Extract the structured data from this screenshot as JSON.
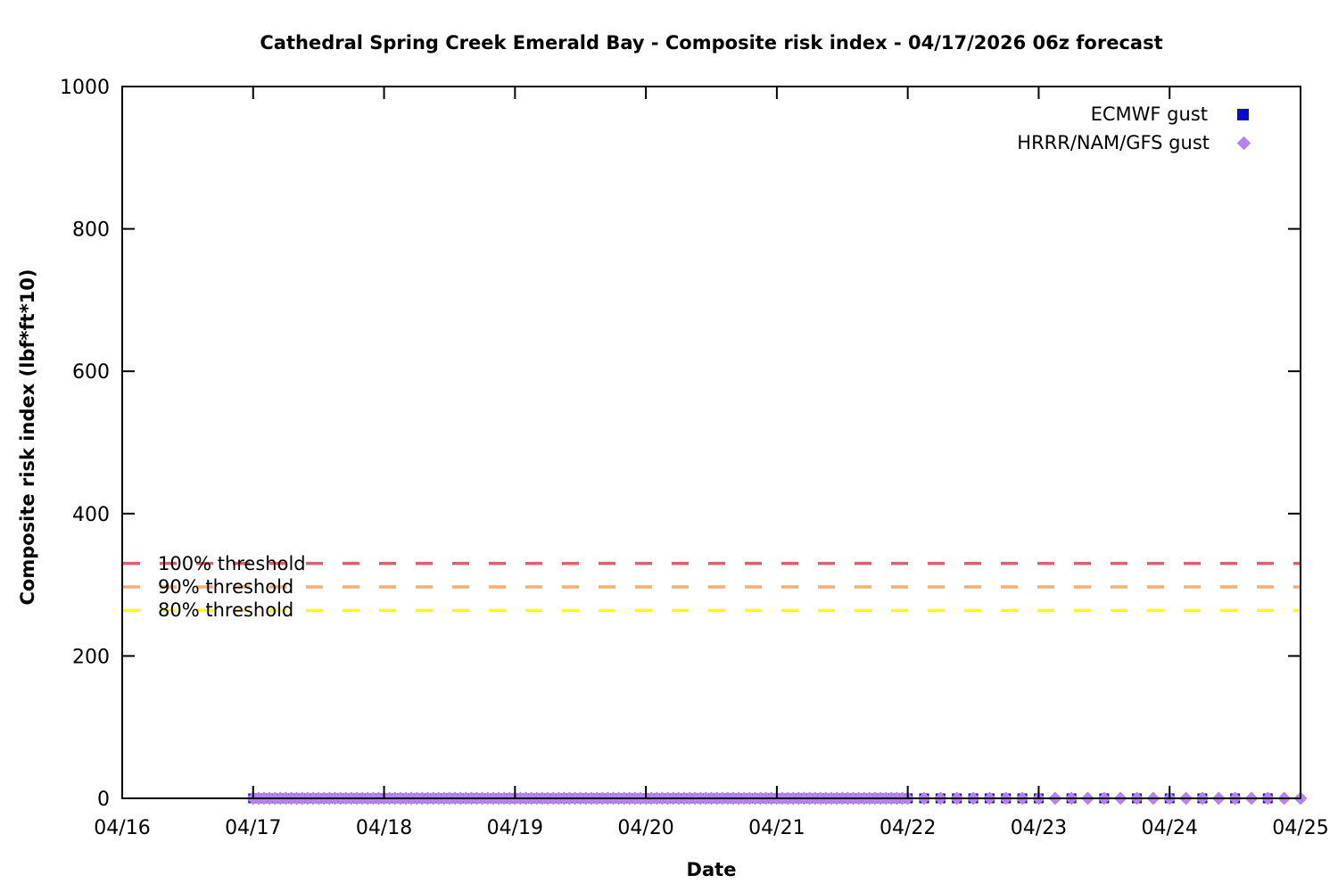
{
  "chart_data": {
    "type": "scatter",
    "title": "Cathedral Spring Creek Emerald Bay - Composite risk index - 04/17/2026 06z forecast",
    "xlabel": "Date",
    "ylabel": "Composite risk index (lbf*ft*10)",
    "x_tick_labels": [
      "04/16",
      "04/17",
      "04/18",
      "04/19",
      "04/20",
      "04/21",
      "04/22",
      "04/23",
      "04/24",
      "04/25"
    ],
    "x_range_hours": [
      0,
      216
    ],
    "ylim": [
      0,
      1000
    ],
    "y_ticks": [
      0,
      200,
      400,
      600,
      800,
      1000
    ],
    "grid": false,
    "legend_position": "top-right-inside",
    "series": [
      {
        "name": "ECMWF gust",
        "marker": "square",
        "color": "#0a0acd",
        "runs": [
          {
            "start": "04/17 00z",
            "end": "04/22 00z",
            "start_hour": 24,
            "end_hour": 144,
            "step_hours": 1,
            "value": 0
          },
          {
            "start": "04/22 03z",
            "end": "04/22 21z",
            "start_hour": 147,
            "end_hour": 165,
            "step_hours": 3,
            "value": 0
          },
          {
            "start": "04/23 00z",
            "end": "04/24 18z",
            "start_hour": 168,
            "end_hour": 210,
            "step_hours": 6,
            "value": 0
          }
        ]
      },
      {
        "name": "HRRR/NAM/GFS gust",
        "marker": "diamond",
        "color": "#b583f0",
        "runs": [
          {
            "start": "04/17 00z",
            "end": "04/22 00z",
            "start_hour": 24,
            "end_hour": 144,
            "step_hours": 1,
            "value": 0
          },
          {
            "start": "04/22 03z",
            "end": "04/25 00z",
            "start_hour": 147,
            "end_hour": 216,
            "step_hours": 3,
            "value": 0
          }
        ]
      }
    ],
    "thresholds": [
      {
        "label": "100% threshold",
        "value": 330,
        "color": "#d9606e"
      },
      {
        "label": "90% threshold",
        "value": 297,
        "color": "#f3ae70"
      },
      {
        "label": "80% threshold",
        "value": 264,
        "color": "#ffff00"
      }
    ]
  }
}
